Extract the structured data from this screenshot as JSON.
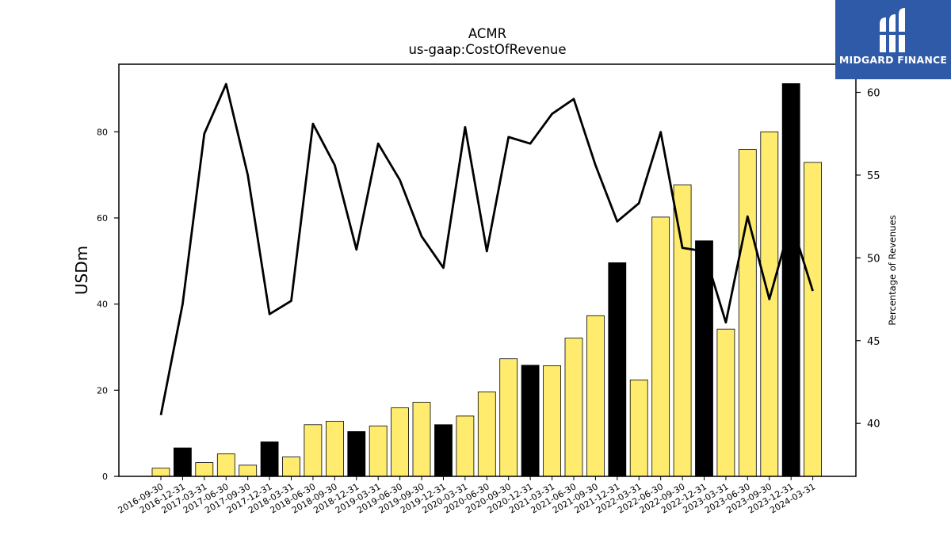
{
  "chart_data": {
    "type": "bar+line",
    "title": "ACMR",
    "subtitle": "us-gaap:CostOfRevenue",
    "ylabel_left": "USDm",
    "ylabel_right": "Percentage of Revenues",
    "ylim_left": [
      0,
      95.7
    ],
    "ylim_right": [
      36.8,
      61.7
    ],
    "yticks_left": [
      "0",
      "20",
      "40",
      "60",
      "80"
    ],
    "yticks_right": [
      "40",
      "45",
      "50",
      "55",
      "60"
    ],
    "categories": [
      "2016-09-30",
      "2016-12-31",
      "2017-03-31",
      "2017-06-30",
      "2017-09-30",
      "2017-12-31",
      "2018-03-31",
      "2018-06-30",
      "2018-09-30",
      "2018-12-31",
      "2019-03-31",
      "2019-06-30",
      "2019-09-30",
      "2019-12-31",
      "2020-03-31",
      "2020-06-30",
      "2020-09-30",
      "2020-12-31",
      "2021-03-31",
      "2021-06-30",
      "2021-09-30",
      "2021-12-31",
      "2022-03-31",
      "2022-06-30",
      "2022-09-30",
      "2022-12-31",
      "2023-03-31",
      "2023-06-30",
      "2023-09-30",
      "2023-12-31",
      "2024-03-31"
    ],
    "bars": {
      "values": [
        1.9,
        6.6,
        3.2,
        5.2,
        2.6,
        8.0,
        4.5,
        12.0,
        12.8,
        10.4,
        11.7,
        15.9,
        17.2,
        12.0,
        14.0,
        19.6,
        27.3,
        25.8,
        25.7,
        32.1,
        37.3,
        49.6,
        22.4,
        60.2,
        67.7,
        54.7,
        34.2,
        75.9,
        80.0,
        91.2,
        72.9
      ],
      "quarter_end_highlight": [
        false,
        true,
        false,
        false,
        false,
        true,
        false,
        false,
        false,
        true,
        false,
        false,
        false,
        true,
        false,
        false,
        false,
        true,
        false,
        false,
        false,
        true,
        false,
        false,
        false,
        true,
        false,
        false,
        false,
        true,
        false
      ],
      "color": "#ffec6e",
      "highlight_color": "#000000"
    },
    "line": {
      "values": [
        40.5,
        47.2,
        57.5,
        60.5,
        55.0,
        46.6,
        47.4,
        58.1,
        55.6,
        50.5,
        56.9,
        54.7,
        51.3,
        49.4,
        57.9,
        50.4,
        57.3,
        56.9,
        58.7,
        59.6,
        55.6,
        52.2,
        53.3,
        57.6,
        50.6,
        50.4,
        46.1,
        52.5,
        47.5,
        52.2,
        48.0
      ],
      "color": "#000000"
    }
  },
  "brand": {
    "name": "MIDGARD FINANCE",
    "color": "#2e5aa7"
  }
}
